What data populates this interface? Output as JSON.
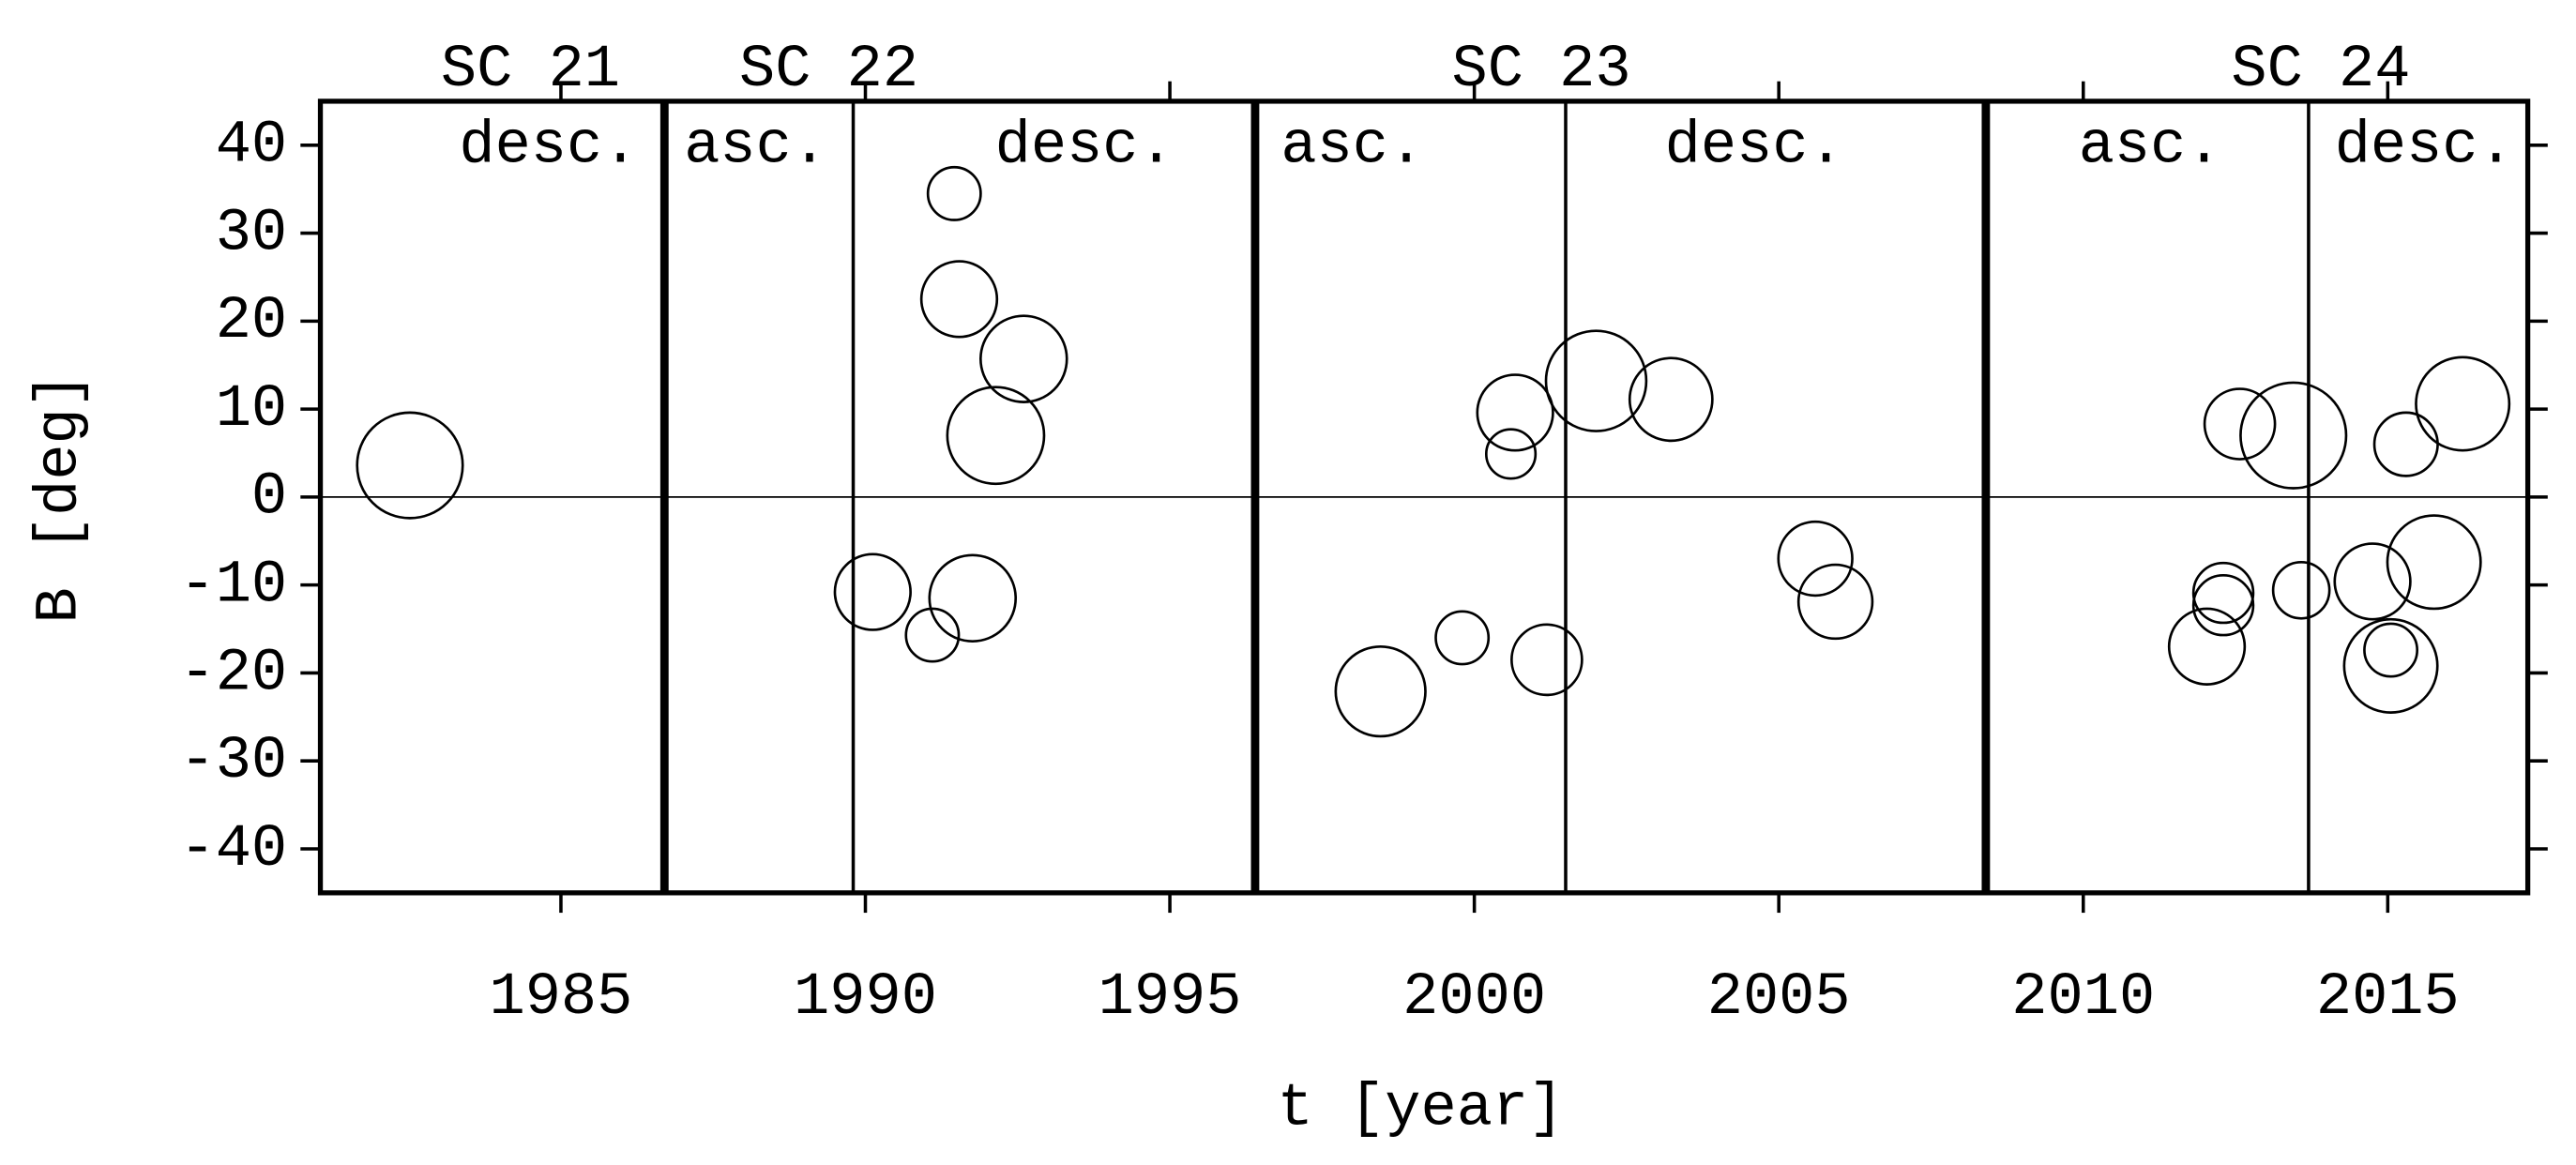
{
  "chart_data": {
    "type": "scatter",
    "xlabel": "t [year]",
    "ylabel": "B [deg]",
    "xlim": [
      1981.05,
      2017.3
    ],
    "ylim": [
      -45,
      45
    ],
    "xticks": [
      1985,
      1990,
      1995,
      2000,
      2005,
      2010,
      2015
    ],
    "yticks": [
      -40,
      -30,
      -20,
      -10,
      0,
      10,
      20,
      30,
      40
    ],
    "hline": 0,
    "color": "#000000",
    "vlines": [
      {
        "x": 1986.7,
        "style": "thick"
      },
      {
        "x": 1989.8,
        "style": "thin"
      },
      {
        "x": 1996.4,
        "style": "thick"
      },
      {
        "x": 2001.5,
        "style": "thin"
      },
      {
        "x": 2008.4,
        "style": "thick"
      },
      {
        "x": 2013.7,
        "style": "thin"
      }
    ],
    "annotations": [
      {
        "text": "SC 21",
        "x": 1984.5,
        "row": "top"
      },
      {
        "text": "SC 22",
        "x": 1989.4,
        "row": "top"
      },
      {
        "text": "SC 23",
        "x": 2001.1,
        "row": "top"
      },
      {
        "text": "SC 24",
        "x": 2013.9,
        "row": "top"
      },
      {
        "text": "desc.",
        "x": 1984.8,
        "row": "inner"
      },
      {
        "text": "asc.",
        "x": 1988.2,
        "row": "inner"
      },
      {
        "text": "desc.",
        "x": 1993.6,
        "row": "inner"
      },
      {
        "text": "asc.",
        "x": 1998.0,
        "row": "inner"
      },
      {
        "text": "desc.",
        "x": 2004.6,
        "row": "inner"
      },
      {
        "text": "asc.",
        "x": 2011.1,
        "row": "inner"
      },
      {
        "text": "desc.",
        "x": 2015.6,
        "row": "inner"
      }
    ],
    "x": [
      1982.52,
      1990.12,
      1991.1,
      1991.46,
      1991.54,
      1991.76,
      1992.6,
      1992.14,
      1998.46,
      1999.8,
      2000.67,
      2000.6,
      2001.19,
      2002.0,
      2003.23,
      2005.6,
      2005.93,
      2012.03,
      2012.3,
      2012.3,
      2012.57,
      2013.45,
      2013.58,
      2014.75,
      2015.05,
      2015.05,
      2015.3,
      2015.76,
      2016.23
    ],
    "values": [
      3.6,
      -10.8,
      -15.7,
      34.5,
      22.5,
      -11.5,
      15.7,
      7.0,
      -22.1,
      -16.0,
      9.6,
      4.9,
      -18.5,
      13.2,
      11.1,
      -7.0,
      -11.9,
      -17.0,
      -10.9,
      -12.3,
      8.3,
      7.0,
      -10.6,
      -9.6,
      -17.4,
      -19.2,
      6.0,
      -7.4,
      10.6
    ],
    "sizes": [
      6.0,
      4.3,
      3.0,
      3.0,
      4.3,
      4.9,
      4.9,
      5.5,
      5.1,
      3.0,
      4.3,
      2.8,
      4.0,
      5.7,
      4.7,
      4.2,
      4.2,
      4.3,
      3.4,
      3.4,
      4.0,
      6.0,
      3.2,
      4.3,
      3.0,
      5.3,
      3.6,
      5.3,
      5.3
    ]
  }
}
